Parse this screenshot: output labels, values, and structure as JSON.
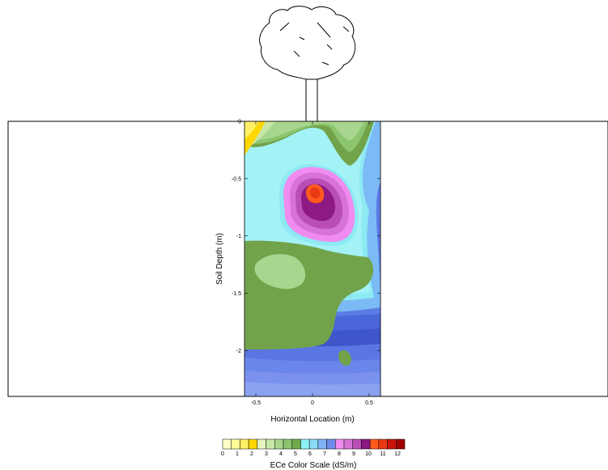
{
  "chart_data": {
    "type": "heatmap",
    "title": "",
    "xlabel": "Horizontal Location (m)",
    "ylabel": "Soil Depth (m)",
    "xlim": [
      -0.6,
      0.6
    ],
    "ylim": [
      -2.4,
      0
    ],
    "x_ticks": [
      {
        "value": -0.5,
        "label": "-0.5"
      },
      {
        "value": 0,
        "label": "0"
      },
      {
        "value": 0.5,
        "label": "0.5"
      }
    ],
    "y_ticks": [
      {
        "value": 0,
        "label": "0"
      },
      {
        "value": -0.5,
        "label": "-0.5"
      },
      {
        "value": -1,
        "label": "-1"
      },
      {
        "value": -1.5,
        "label": "-1.5"
      },
      {
        "value": -2,
        "label": "-2"
      }
    ],
    "zones": [
      {
        "name": "near-surface-yellow",
        "value": 1.5
      },
      {
        "name": "upper-green-tongue",
        "value": 4.5
      },
      {
        "name": "salinity-peak-core",
        "value": 10.5,
        "center": [
          0.02,
          -0.62
        ]
      },
      {
        "name": "middle-green-layer",
        "value": 4.5
      },
      {
        "name": "lower-cyan-layer",
        "value": 5.5
      },
      {
        "name": "bottom-blue-layer",
        "value": 6.5
      }
    ],
    "color_scale": {
      "title": "ECe Color Scale (dS/m)",
      "range": [
        0,
        12.5
      ],
      "tick_labels": [
        "0",
        "1",
        "2",
        "3",
        "4",
        "5",
        "6",
        "7",
        "8",
        "9",
        "10",
        "11",
        "12"
      ],
      "colors": [
        "#FFFFC8",
        "#FFFF99",
        "#FFF066",
        "#FFD700",
        "#E6F5BE",
        "#C9E8A7",
        "#A8D68E",
        "#8CC56F",
        "#72A84A",
        "#8CF2F2",
        "#8CDAFA",
        "#7FB2F5",
        "#6E8CEB",
        "#F08CF0",
        "#D773D7",
        "#B94FB4",
        "#8C1A82",
        "#FF5A1E",
        "#E83A14",
        "#C8140A",
        "#A00000"
      ]
    },
    "grid": false,
    "legend": "bottom"
  }
}
